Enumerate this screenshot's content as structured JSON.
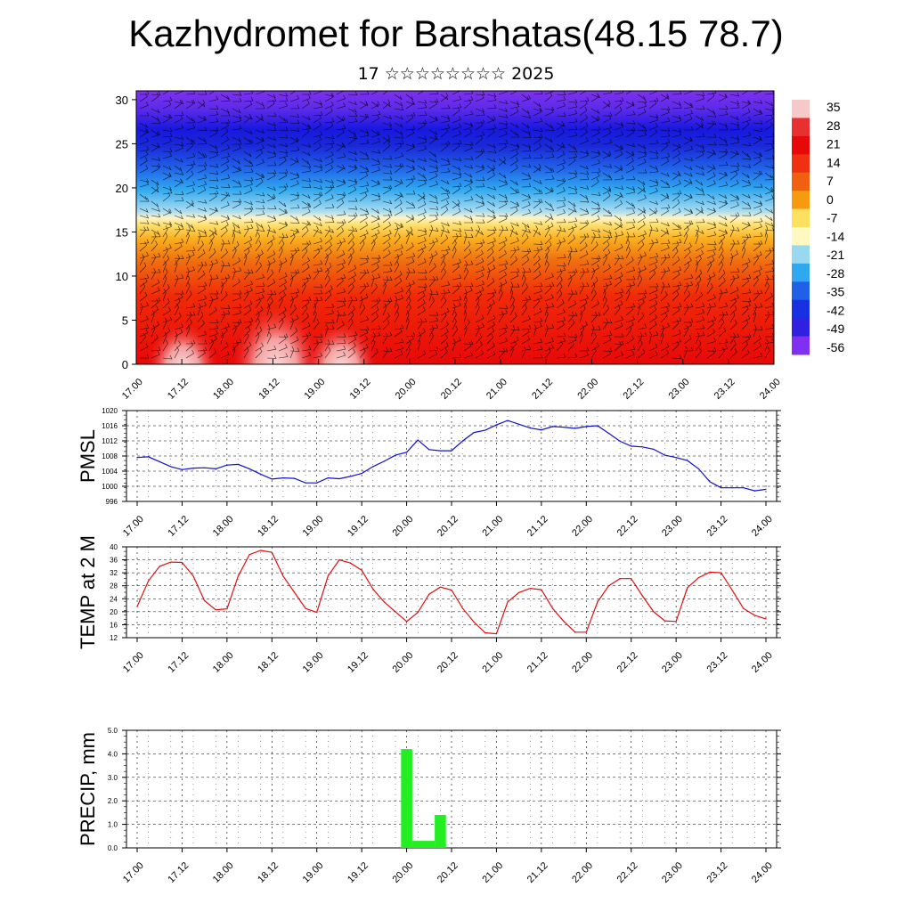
{
  "header": {
    "title": "Kazhydromet for Barshatas(48.15 78.7)",
    "subtitle": "17 ☆☆☆☆☆☆☆☆ 2025"
  },
  "colors": {
    "pmsl_line": "#1010d0",
    "temp_line": "#e01010",
    "precip_bar": "#22ee22",
    "grid": "#000000"
  },
  "chart_data": [
    {
      "id": "cross_section",
      "type": "heatmap",
      "description_fields": [
        "temperature shading with wind barbs"
      ],
      "x_ticks": [
        "17.00",
        "17.12",
        "18.00",
        "18.12",
        "19.00",
        "19.12",
        "20.00",
        "20.12",
        "21.00",
        "21.12",
        "22.00",
        "22.12",
        "23.00",
        "23.12",
        "24.00"
      ],
      "y_ticks": [
        "0",
        "5",
        "10",
        "15",
        "20",
        "25",
        "30"
      ],
      "ylim": [
        0,
        31
      ],
      "colorbar_labels": [
        "35",
        "28",
        "21",
        "14",
        "7",
        "0",
        "-7",
        "-14",
        "-21",
        "-28",
        "-35",
        "-42",
        "-49",
        "-56"
      ],
      "colorbar_colors": [
        "#f6c8c8",
        "#e83030",
        "#e80808",
        "#f03010",
        "#f06010",
        "#f89a10",
        "#fde060",
        "#fff8c0",
        "#9ad8f0",
        "#30a8f0",
        "#2060e8",
        "#1830e0",
        "#3020e0",
        "#8030f0"
      ]
    },
    {
      "id": "pmsl",
      "type": "line",
      "ylabel": "PMSL",
      "ylim": [
        996,
        1020
      ],
      "y_ticks": [
        "1020",
        "1016",
        "1012",
        "1008",
        "1004",
        "1000",
        "996"
      ],
      "x_ticks": [
        "17.00",
        "17.12",
        "18.00",
        "18.12",
        "19.00",
        "19.12",
        "20.00",
        "20.12",
        "21.00",
        "21.12",
        "22.00",
        "22.12",
        "23.00",
        "23.12",
        "24.00"
      ],
      "x": [
        0,
        3,
        6,
        9,
        12,
        15,
        18,
        21,
        24,
        27,
        30,
        33,
        36,
        39,
        42,
        45,
        48,
        51,
        54,
        57,
        60,
        63,
        66,
        69,
        72,
        75,
        78,
        81,
        84,
        87,
        90,
        93,
        96,
        99,
        102,
        105,
        108,
        111,
        114,
        117,
        120,
        123,
        126,
        129,
        132,
        135,
        138,
        141,
        144,
        147,
        150,
        153,
        156,
        159,
        162,
        165,
        168
      ],
      "values": [
        1007.6,
        1007.8,
        1006.5,
        1005.2,
        1004.4,
        1004.8,
        1004.9,
        1004.6,
        1005.6,
        1005.8,
        1004.6,
        1003.2,
        1001.9,
        1002.2,
        1002.1,
        1000.9,
        1000.9,
        1002.2,
        1002.0,
        1002.6,
        1003.4,
        1005.2,
        1006.6,
        1008.2,
        1009.0,
        1012.2,
        1009.7,
        1009.4,
        1009.4,
        1012.0,
        1014.2,
        1014.8,
        1016.2,
        1017.4,
        1016.4,
        1015.4,
        1014.9,
        1015.8,
        1015.6,
        1015.3,
        1015.8,
        1016.0,
        1014.0,
        1011.9,
        1010.6,
        1010.4,
        1009.8,
        1008.2,
        1007.6,
        1006.8,
        1004.6,
        1001.2,
        999.6,
        999.6,
        999.6,
        998.8,
        999.2
      ]
    },
    {
      "id": "temp2m",
      "type": "line",
      "ylabel": "TEMP at 2 M",
      "ylim": [
        12,
        40
      ],
      "y_ticks": [
        "40",
        "36",
        "32",
        "28",
        "24",
        "20",
        "16",
        "12"
      ],
      "x_ticks": [
        "17.00",
        "17.12",
        "18.00",
        "18.12",
        "19.00",
        "19.12",
        "20.00",
        "20.12",
        "21.00",
        "21.12",
        "22.00",
        "22.12",
        "23.00",
        "23.12",
        "24.00"
      ],
      "x": [
        0,
        3,
        6,
        9,
        12,
        15,
        18,
        21,
        24,
        27,
        30,
        33,
        36,
        39,
        42,
        45,
        48,
        51,
        54,
        57,
        60,
        63,
        66,
        69,
        72,
        75,
        78,
        81,
        84,
        87,
        90,
        93,
        96,
        99,
        102,
        105,
        108,
        111,
        114,
        117,
        120,
        123,
        126,
        129,
        132,
        135,
        138,
        141,
        144,
        147,
        150,
        153,
        156,
        159,
        162,
        165,
        168
      ],
      "values": [
        21.6,
        29.5,
        34,
        35.3,
        35.2,
        31,
        23.4,
        20.6,
        20.9,
        31,
        37.6,
        38.9,
        38.3,
        31,
        26,
        21,
        19.8,
        31,
        36,
        35,
        32.8,
        27,
        23,
        20,
        17,
        19.8,
        25.4,
        27.6,
        26.7,
        21,
        16.8,
        13.5,
        13.2,
        23,
        25.9,
        27.2,
        26.8,
        21,
        17,
        13.7,
        13.7,
        23,
        28,
        30.2,
        30.2,
        24.9,
        20,
        17.2,
        17,
        27.4,
        30.5,
        32.2,
        32,
        26.6,
        21,
        18.9,
        17.8
      ]
    },
    {
      "id": "precip",
      "type": "bar",
      "ylabel": "PRECIP, mm",
      "ylim": [
        0,
        5
      ],
      "y_ticks": [
        "5.0",
        "4.0",
        "3.0",
        "2.0",
        "1.0",
        "0.0"
      ],
      "x_ticks": [
        "17.00",
        "17.12",
        "18.00",
        "18.12",
        "19.00",
        "19.12",
        "20.00",
        "20.12",
        "21.00",
        "21.12",
        "22.00",
        "22.12",
        "23.00",
        "23.12",
        "24.00"
      ],
      "x": [
        0,
        3,
        6,
        9,
        12,
        15,
        18,
        21,
        24,
        27,
        30,
        33,
        36,
        39,
        42,
        45,
        48,
        51,
        54,
        57,
        60,
        63,
        66,
        69,
        72,
        75,
        78,
        81,
        84,
        87,
        90,
        93,
        96,
        99,
        102,
        105,
        108,
        111,
        114,
        117,
        120,
        123,
        126,
        129,
        132,
        135,
        138,
        141,
        144,
        147,
        150,
        153,
        156,
        159,
        162,
        165,
        168
      ],
      "values": [
        0,
        0,
        0,
        0,
        0,
        0,
        0,
        0,
        0,
        0,
        0,
        0,
        0,
        0,
        0,
        0,
        0,
        0,
        0,
        0,
        0,
        0,
        0,
        0,
        4.2,
        0.3,
        0.3,
        1.4,
        0,
        0,
        0,
        0,
        0,
        0,
        0,
        0,
        0,
        0,
        0,
        0,
        0,
        0,
        0,
        0,
        0,
        0,
        0,
        0,
        0,
        0,
        0,
        0,
        0,
        0,
        0,
        0,
        0
      ]
    }
  ]
}
